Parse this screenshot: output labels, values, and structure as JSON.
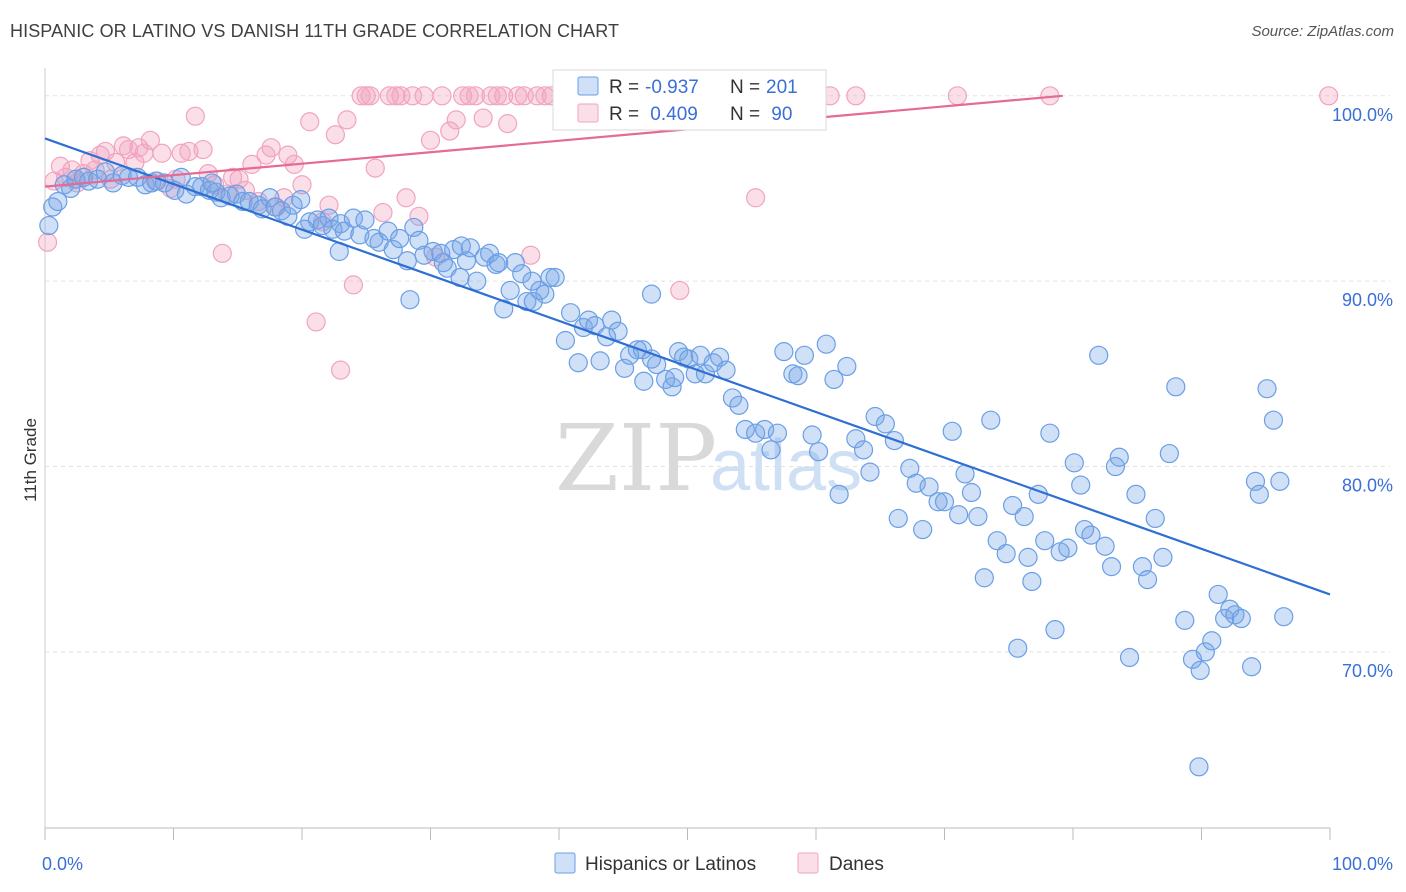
{
  "title": "HISPANIC OR LATINO VS DANISH 11TH GRADE CORRELATION CHART",
  "source": "Source: ZipAtlas.com",
  "watermark": {
    "zip": "ZIP",
    "atlas": "atlas"
  },
  "colors": {
    "blue": "#6a9fe6",
    "blue_fill": "rgba(120,165,230,0.35)",
    "blue_line": "#2d6fd2",
    "pink": "#f2a3bf",
    "pink_fill": "rgba(242,163,191,0.35)",
    "pink_line": "#e56a94",
    "grid": "#e2e2e2",
    "tick_text": "#3a6fd8"
  },
  "legend": {
    "rows": [
      {
        "r_label": "R =",
        "r_value": "-0.937",
        "n_label": "N =",
        "n_value": "201"
      },
      {
        "r_label": "R =",
        "r_value": " 0.409",
        "n_label": "N =",
        "n_value": " 90"
      }
    ]
  },
  "bottom_legend": [
    "Hispanics or Latinos",
    "Danes"
  ],
  "chart_data": {
    "type": "scatter",
    "title": "HISPANIC OR LATINO VS DANISH 11TH GRADE CORRELATION CHART",
    "xlabel": "",
    "ylabel": "11th Grade",
    "xlim": [
      0,
      100
    ],
    "ylim": [
      60.5,
      101.5
    ],
    "x_ticks_labels": [
      "0.0%",
      "100.0%"
    ],
    "y_ticks": [
      70,
      80,
      90,
      100
    ],
    "y_tick_labels": [
      "70.0%",
      "80.0%",
      "90.0%",
      "100.0%"
    ],
    "grid": true,
    "legend_position": "top-center",
    "series": [
      {
        "name": "Hispanics or Latinos",
        "r": -0.937,
        "n": 201,
        "trend": {
          "x": [
            0,
            100
          ],
          "y": [
            97.7,
            73.1
          ]
        },
        "points": [
          [
            0.3,
            93.0
          ],
          [
            0.6,
            94.0
          ],
          [
            1.0,
            94.3
          ],
          [
            1.5,
            95.2
          ],
          [
            2.0,
            95.0
          ],
          [
            2.4,
            95.5
          ],
          [
            3.0,
            95.6
          ],
          [
            3.4,
            95.4
          ],
          [
            4.1,
            95.5
          ],
          [
            4.7,
            95.9
          ],
          [
            5.3,
            95.3
          ],
          [
            6.0,
            95.7
          ],
          [
            6.5,
            95.6
          ],
          [
            7.2,
            95.6
          ],
          [
            7.8,
            95.2
          ],
          [
            8.3,
            95.3
          ],
          [
            8.7,
            95.4
          ],
          [
            9.3,
            95.3
          ],
          [
            10.1,
            94.9
          ],
          [
            10.6,
            95.6
          ],
          [
            11.0,
            94.7
          ],
          [
            11.7,
            95.1
          ],
          [
            12.2,
            95.1
          ],
          [
            12.8,
            94.9
          ],
          [
            13.3,
            94.8
          ],
          [
            13.7,
            94.5
          ],
          [
            14.4,
            94.6
          ],
          [
            14.9,
            94.7
          ],
          [
            15.4,
            94.3
          ],
          [
            15.9,
            94.3
          ],
          [
            16.6,
            94.1
          ],
          [
            16.9,
            93.9
          ],
          [
            17.5,
            94.5
          ],
          [
            17.9,
            94.0
          ],
          [
            18.4,
            93.8
          ],
          [
            18.9,
            93.5
          ],
          [
            19.3,
            94.1
          ],
          [
            19.9,
            94.4
          ],
          [
            20.6,
            93.2
          ],
          [
            21.2,
            93.3
          ],
          [
            21.6,
            93.0
          ],
          [
            22.1,
            93.4
          ],
          [
            22.4,
            92.8
          ],
          [
            23.0,
            93.1
          ],
          [
            23.3,
            92.7
          ],
          [
            24.0,
            93.4
          ],
          [
            24.5,
            92.5
          ],
          [
            24.9,
            93.3
          ],
          [
            25.6,
            92.3
          ],
          [
            26.0,
            92.1
          ],
          [
            26.7,
            92.7
          ],
          [
            27.1,
            91.7
          ],
          [
            27.6,
            92.3
          ],
          [
            28.2,
            91.1
          ],
          [
            28.7,
            92.9
          ],
          [
            29.1,
            92.2
          ],
          [
            29.5,
            91.4
          ],
          [
            30.2,
            91.6
          ],
          [
            30.8,
            91.5
          ],
          [
            31.3,
            90.7
          ],
          [
            31.8,
            91.7
          ],
          [
            32.3,
            90.2
          ],
          [
            32.8,
            91.1
          ],
          [
            33.1,
            91.8
          ],
          [
            33.6,
            90.0
          ],
          [
            34.2,
            91.3
          ],
          [
            34.6,
            91.5
          ],
          [
            35.1,
            90.9
          ],
          [
            35.7,
            88.5
          ],
          [
            36.2,
            89.5
          ],
          [
            36.6,
            91.0
          ],
          [
            37.1,
            90.4
          ],
          [
            37.5,
            88.9
          ],
          [
            37.9,
            90.0
          ],
          [
            38.5,
            89.5
          ],
          [
            38.9,
            89.3
          ],
          [
            39.3,
            90.2
          ],
          [
            39.7,
            90.2
          ],
          [
            40.5,
            86.8
          ],
          [
            40.9,
            88.3
          ],
          [
            41.5,
            85.6
          ],
          [
            41.9,
            87.5
          ],
          [
            42.3,
            87.9
          ],
          [
            42.8,
            87.6
          ],
          [
            43.2,
            85.7
          ],
          [
            43.7,
            87.0
          ],
          [
            44.1,
            87.9
          ],
          [
            44.6,
            87.3
          ],
          [
            45.1,
            85.3
          ],
          [
            45.5,
            86.0
          ],
          [
            46.1,
            86.3
          ],
          [
            46.6,
            84.6
          ],
          [
            47.2,
            85.8
          ],
          [
            47.6,
            85.5
          ],
          [
            48.3,
            84.7
          ],
          [
            48.8,
            84.3
          ],
          [
            49.3,
            86.2
          ],
          [
            49.7,
            85.9
          ],
          [
            50.1,
            85.8
          ],
          [
            50.6,
            85.0
          ],
          [
            51.0,
            86.0
          ],
          [
            51.4,
            85.0
          ],
          [
            52.0,
            85.6
          ],
          [
            52.5,
            85.9
          ],
          [
            53.0,
            85.2
          ],
          [
            53.5,
            83.7
          ],
          [
            54.0,
            83.3
          ],
          [
            54.5,
            82.0
          ],
          [
            55.3,
            81.8
          ],
          [
            56.0,
            82.0
          ],
          [
            56.5,
            80.9
          ],
          [
            57.0,
            81.8
          ],
          [
            57.5,
            86.2
          ],
          [
            58.2,
            85.0
          ],
          [
            58.6,
            84.9
          ],
          [
            59.1,
            86.0
          ],
          [
            59.7,
            81.7
          ],
          [
            60.2,
            80.8
          ],
          [
            60.8,
            86.6
          ],
          [
            61.4,
            84.7
          ],
          [
            61.8,
            78.5
          ],
          [
            62.4,
            85.4
          ],
          [
            63.1,
            81.5
          ],
          [
            63.7,
            80.9
          ],
          [
            64.2,
            79.7
          ],
          [
            64.6,
            82.7
          ],
          [
            65.4,
            82.3
          ],
          [
            66.1,
            81.4
          ],
          [
            66.4,
            77.2
          ],
          [
            67.3,
            79.9
          ],
          [
            67.8,
            79.1
          ],
          [
            68.3,
            76.6
          ],
          [
            68.8,
            78.9
          ],
          [
            69.5,
            78.1
          ],
          [
            70.0,
            78.1
          ],
          [
            70.6,
            81.9
          ],
          [
            71.1,
            77.4
          ],
          [
            71.6,
            79.6
          ],
          [
            72.1,
            78.6
          ],
          [
            72.6,
            77.3
          ],
          [
            73.1,
            74.0
          ],
          [
            73.6,
            82.5
          ],
          [
            74.1,
            76.0
          ],
          [
            74.8,
            75.3
          ],
          [
            75.3,
            77.9
          ],
          [
            75.7,
            70.2
          ],
          [
            76.2,
            77.3
          ],
          [
            76.5,
            75.1
          ],
          [
            76.8,
            73.8
          ],
          [
            77.3,
            78.5
          ],
          [
            77.8,
            76.0
          ],
          [
            78.2,
            81.8
          ],
          [
            78.6,
            71.2
          ],
          [
            79.0,
            75.4
          ],
          [
            79.6,
            75.6
          ],
          [
            80.1,
            80.2
          ],
          [
            80.6,
            79.0
          ],
          [
            80.9,
            76.6
          ],
          [
            81.4,
            76.3
          ],
          [
            82.0,
            86.0
          ],
          [
            82.5,
            75.7
          ],
          [
            83.0,
            74.6
          ],
          [
            83.3,
            80.0
          ],
          [
            83.6,
            80.5
          ],
          [
            84.4,
            69.7
          ],
          [
            84.9,
            78.5
          ],
          [
            85.4,
            74.6
          ],
          [
            85.8,
            73.9
          ],
          [
            86.4,
            77.2
          ],
          [
            87.0,
            75.1
          ],
          [
            87.5,
            80.7
          ],
          [
            88.0,
            84.3
          ],
          [
            88.7,
            71.7
          ],
          [
            89.3,
            69.6
          ],
          [
            89.9,
            69.0
          ],
          [
            90.3,
            70.0
          ],
          [
            90.8,
            70.6
          ],
          [
            91.3,
            73.1
          ],
          [
            91.8,
            71.8
          ],
          [
            92.2,
            72.3
          ],
          [
            92.6,
            72.0
          ],
          [
            93.1,
            71.8
          ],
          [
            93.9,
            69.2
          ],
          [
            94.2,
            79.2
          ],
          [
            94.5,
            78.5
          ],
          [
            95.1,
            84.2
          ],
          [
            95.6,
            82.5
          ],
          [
            96.1,
            79.2
          ],
          [
            96.4,
            71.9
          ],
          [
            89.8,
            63.8
          ],
          [
            46.5,
            86.3
          ],
          [
            32.4,
            91.9
          ],
          [
            28.4,
            89.0
          ],
          [
            49.0,
            84.8
          ],
          [
            38.0,
            88.9
          ],
          [
            13.0,
            95.3
          ],
          [
            47.2,
            89.3
          ],
          [
            22.9,
            91.6
          ],
          [
            31.0,
            91.0
          ],
          [
            35.3,
            91.0
          ],
          [
            20.2,
            92.8
          ]
        ]
      },
      {
        "name": "Danes",
        "r": 0.409,
        "n": 90,
        "trend": {
          "x": [
            0,
            79.2
          ],
          "y": [
            95.1,
            100.0
          ]
        },
        "points": [
          [
            0.2,
            92.1
          ],
          [
            0.7,
            95.4
          ],
          [
            1.2,
            96.2
          ],
          [
            1.6,
            95.6
          ],
          [
            2.1,
            96.0
          ],
          [
            2.5,
            95.3
          ],
          [
            3.0,
            95.8
          ],
          [
            3.5,
            96.5
          ],
          [
            3.9,
            96.0
          ],
          [
            4.3,
            96.8
          ],
          [
            4.7,
            97.0
          ],
          [
            5.1,
            95.5
          ],
          [
            5.5,
            96.4
          ],
          [
            6.1,
            97.3
          ],
          [
            6.5,
            97.1
          ],
          [
            7.0,
            96.4
          ],
          [
            7.3,
            97.2
          ],
          [
            7.7,
            96.9
          ],
          [
            8.2,
            97.6
          ],
          [
            8.6,
            95.4
          ],
          [
            9.1,
            96.9
          ],
          [
            9.8,
            95.0
          ],
          [
            10.2,
            95.5
          ],
          [
            10.6,
            96.9
          ],
          [
            11.2,
            97.0
          ],
          [
            11.7,
            98.9
          ],
          [
            12.3,
            97.1
          ],
          [
            12.7,
            95.8
          ],
          [
            13.2,
            95.2
          ],
          [
            13.8,
            91.5
          ],
          [
            14.2,
            94.7
          ],
          [
            14.6,
            95.6
          ],
          [
            15.1,
            95.5
          ],
          [
            15.6,
            94.9
          ],
          [
            16.1,
            96.3
          ],
          [
            16.6,
            94.3
          ],
          [
            17.2,
            96.8
          ],
          [
            17.6,
            97.2
          ],
          [
            18.0,
            94.0
          ],
          [
            18.6,
            94.5
          ],
          [
            18.9,
            96.8
          ],
          [
            19.4,
            96.3
          ],
          [
            20.0,
            95.2
          ],
          [
            20.6,
            98.6
          ],
          [
            21.1,
            87.8
          ],
          [
            21.6,
            93.2
          ],
          [
            22.1,
            94.1
          ],
          [
            22.6,
            97.9
          ],
          [
            23.0,
            85.2
          ],
          [
            23.5,
            98.7
          ],
          [
            24.0,
            89.8
          ],
          [
            24.6,
            100.0
          ],
          [
            25.0,
            100.0
          ],
          [
            25.3,
            100.0
          ],
          [
            25.7,
            96.1
          ],
          [
            26.3,
            93.7
          ],
          [
            26.8,
            100.0
          ],
          [
            27.3,
            100.0
          ],
          [
            27.7,
            100.0
          ],
          [
            28.1,
            94.5
          ],
          [
            28.6,
            100.0
          ],
          [
            29.1,
            93.5
          ],
          [
            29.5,
            100.0
          ],
          [
            30.0,
            97.6
          ],
          [
            30.4,
            91.3
          ],
          [
            30.9,
            100.0
          ],
          [
            31.5,
            98.1
          ],
          [
            32.0,
            98.7
          ],
          [
            32.5,
            100.0
          ],
          [
            33.0,
            100.0
          ],
          [
            33.5,
            100.0
          ],
          [
            34.1,
            98.8
          ],
          [
            34.7,
            100.0
          ],
          [
            35.2,
            100.0
          ],
          [
            35.7,
            100.0
          ],
          [
            36.0,
            98.5
          ],
          [
            36.8,
            100.0
          ],
          [
            37.3,
            100.0
          ],
          [
            37.8,
            91.4
          ],
          [
            38.3,
            100.0
          ],
          [
            38.9,
            100.0
          ],
          [
            39.4,
            100.0
          ],
          [
            49.0,
            100.0
          ],
          [
            61.1,
            100.0
          ],
          [
            55.3,
            94.5
          ],
          [
            49.4,
            89.5
          ],
          [
            63.1,
            100.0
          ],
          [
            71.0,
            100.0
          ],
          [
            78.2,
            100.0
          ],
          [
            99.9,
            100.0
          ]
        ]
      }
    ]
  }
}
